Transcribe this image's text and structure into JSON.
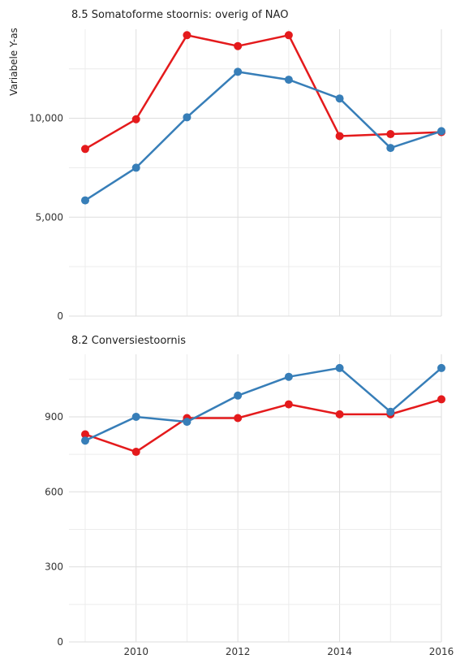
{
  "chart_data": {
    "type": "line",
    "ylabel": "Variabele Y-as",
    "xlabel": "",
    "x_ticks": [
      "2010",
      "2012",
      "2014",
      "2016"
    ],
    "x_range": [
      2009,
      2016
    ],
    "grid": true,
    "legend": "none",
    "series_colors": [
      "#e41a1c",
      "#377eb8"
    ],
    "panels": [
      {
        "title": "8.5 Somatoforme stoornis: overig of NAO",
        "ylim": [
          0,
          14500
        ],
        "y_ticks": [
          {
            "value": 0,
            "label": "0"
          },
          {
            "value": 5000,
            "label": "5,000"
          },
          {
            "value": 10000,
            "label": "10,000"
          }
        ],
        "series": [
          {
            "color": "#e41a1c",
            "x": [
              2009,
              2010,
              2011,
              2012,
              2013,
              2014,
              2015,
              2016
            ],
            "values": [
              8450,
              9950,
              14200,
              13650,
              14200,
              9100,
              9200,
              9300
            ]
          },
          {
            "color": "#377eb8",
            "x": [
              2009,
              2010,
              2011,
              2012,
              2013,
              2014,
              2015,
              2016
            ],
            "values": [
              5850,
              7500,
              10050,
              12350,
              11950,
              11000,
              8500,
              9350
            ]
          }
        ]
      },
      {
        "title": "8.2 Conversiestoornis",
        "ylim": [
          0,
          1150
        ],
        "y_ticks": [
          {
            "value": 0,
            "label": "0"
          },
          {
            "value": 300,
            "label": "300"
          },
          {
            "value": 600,
            "label": "600"
          },
          {
            "value": 900,
            "label": "900"
          }
        ],
        "series": [
          {
            "color": "#e41a1c",
            "x": [
              2009,
              2010,
              2011,
              2012,
              2013,
              2014,
              2015,
              2016
            ],
            "values": [
              830,
              760,
              895,
              895,
              950,
              910,
              910,
              970
            ]
          },
          {
            "color": "#377eb8",
            "x": [
              2009,
              2010,
              2011,
              2012,
              2013,
              2014,
              2015,
              2016
            ],
            "values": [
              805,
              900,
              880,
              985,
              1060,
              1095,
              920,
              1095
            ]
          }
        ]
      }
    ]
  }
}
